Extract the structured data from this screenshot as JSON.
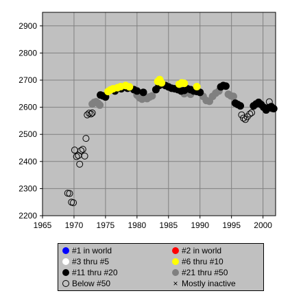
{
  "chart_data": {
    "type": "scatter",
    "title": "",
    "xlabel": "",
    "ylabel": "",
    "xlim": [
      1965,
      2002
    ],
    "ylim": [
      2200,
      2950
    ],
    "xticks": [
      "1965",
      "1970",
      "1975",
      "1980",
      "1985",
      "1990",
      "1995",
      "2000"
    ],
    "yticks": [
      "2200",
      "2300",
      "2400",
      "2500",
      "2600",
      "2700",
      "2800",
      "2900"
    ],
    "grid": true,
    "plot_background": "#c0c0c0",
    "legend_position": "bottom",
    "legend": [
      {
        "key": "rank1",
        "label": "#1 in world",
        "color": "#0000ff",
        "marker": "filled-circle"
      },
      {
        "key": "rank2",
        "label": "#2 in world",
        "color": "#ff0000",
        "marker": "filled-circle"
      },
      {
        "key": "rank3_5",
        "label": "#3 thru #5",
        "color": "#ffffff",
        "marker": "filled-circle"
      },
      {
        "key": "rank6_10",
        "label": "#6 thru #10",
        "color": "#ffff00",
        "marker": "filled-circle"
      },
      {
        "key": "rank11_20",
        "label": "#11 thru #20",
        "color": "#000000",
        "marker": "filled-circle"
      },
      {
        "key": "rank21_50",
        "label": "#21 thru #50",
        "color": "#808080",
        "marker": "filled-circle"
      },
      {
        "key": "below50",
        "label": "Below #50",
        "color": "#000000",
        "marker": "open-circle"
      },
      {
        "key": "inactive",
        "label": "Mostly inactive",
        "color": "#000000",
        "marker": "x"
      }
    ],
    "series": [
      {
        "key": "below50",
        "x": [
          1969.0,
          1969.3,
          1969.6,
          1969.9,
          1970.1,
          1970.4,
          1970.7,
          1970.9,
          1971.1,
          1971.4,
          1971.7,
          1971.9,
          1972.1,
          1972.4,
          1972.7,
          1972.9,
          1996.6,
          1996.9,
          1997.2,
          1997.5,
          1997.9,
          1998.2,
          2001.0,
          2001.4
        ],
        "y": [
          2283,
          2282,
          2250,
          2248,
          2442,
          2418,
          2422,
          2390,
          2440,
          2445,
          2420,
          2485,
          2572,
          2578,
          2575,
          2579,
          2572,
          2560,
          2555,
          2565,
          2575,
          2580,
          2620,
          2595
        ]
      },
      {
        "key": "rank21_50",
        "x": [
          1972.9,
          1973.2,
          1973.5,
          1973.8,
          1974.1,
          1980.0,
          1980.4,
          1980.8,
          1981.2,
          1981.6,
          1982.0,
          1982.4,
          1987.5,
          1988.0,
          1988.5,
          1990.5,
          1991.0,
          1991.5,
          1992.0,
          1992.5,
          1993.0,
          1994.5,
          1994.9,
          1995.3
        ],
        "y": [
          2612,
          2618,
          2620,
          2615,
          2608,
          2645,
          2635,
          2630,
          2640,
          2632,
          2638,
          2642,
          2650,
          2655,
          2648,
          2640,
          2625,
          2622,
          2640,
          2652,
          2660,
          2648,
          2642,
          2640
        ]
      },
      {
        "key": "rank11_20",
        "x": [
          1974.2,
          1974.6,
          1975.0,
          1976.5,
          1977.5,
          1978.0,
          1978.5,
          1979.5,
          1980.0,
          1981.0,
          1983.0,
          1983.5,
          1984.0,
          1984.5,
          1985.0,
          1985.5,
          1986.0,
          1986.5,
          1987.0,
          1987.5,
          1988.0,
          1988.5,
          1989.0,
          1989.5,
          1990.0,
          1993.3,
          1993.7,
          1994.1,
          1995.6,
          1996.0,
          1996.4,
          1998.5,
          1998.9,
          1999.3,
          1999.7,
          2000.1,
          2000.5,
          2000.9,
          2001.3,
          2001.7
        ],
        "y": [
          2645,
          2642,
          2638,
          2660,
          2668,
          2675,
          2670,
          2665,
          2660,
          2655,
          2665,
          2680,
          2685,
          2680,
          2675,
          2670,
          2668,
          2665,
          2660,
          2662,
          2668,
          2665,
          2660,
          2658,
          2655,
          2675,
          2680,
          2678,
          2615,
          2610,
          2605,
          2605,
          2612,
          2618,
          2610,
          2600,
          2590,
          2598,
          2602,
          2595
        ]
      },
      {
        "key": "rank6_10",
        "x": [
          1975.4,
          1975.8,
          1976.2,
          1976.9,
          1977.4,
          1978.2,
          1978.8,
          1983.3,
          1983.6,
          1983.9,
          1986.7,
          1987.1,
          1987.5,
          1989.5
        ],
        "y": [
          2658,
          2664,
          2668,
          2672,
          2676,
          2680,
          2675,
          2695,
          2702,
          2690,
          2685,
          2690,
          2688,
          2676
        ]
      },
      {
        "key": "rank3_5",
        "x": [],
        "y": []
      },
      {
        "key": "rank1",
        "x": [],
        "y": []
      },
      {
        "key": "rank2",
        "x": [],
        "y": []
      },
      {
        "key": "inactive",
        "x": [],
        "y": []
      }
    ]
  }
}
